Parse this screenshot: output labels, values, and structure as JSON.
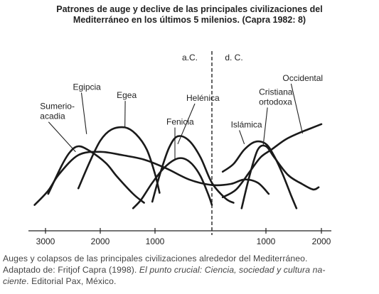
{
  "chart_data": {
    "type": "line",
    "title_line1": "Patrones de auge y declive de las principales civilizaciones del",
    "title_line2": "Mediterráneo en los últimos 5 milenios. (Capra 1982: 8)",
    "era_labels": {
      "bc": "a.C.",
      "ad": "d. C."
    },
    "x_ticks": [
      {
        "value": -3000,
        "label": "3000"
      },
      {
        "value": -2000,
        "label": "2000"
      },
      {
        "value": -1000,
        "label": "1000"
      },
      {
        "value": 1000,
        "label": "1000"
      },
      {
        "value": 2000,
        "label": "2000"
      }
    ],
    "xlim": [
      -3300,
      2200
    ],
    "ylim": [
      0,
      10
    ],
    "divider_at": 0,
    "series": [
      {
        "name": "Sumerio-acadia",
        "label_lines": [
          "Sumerio-",
          "acadia"
        ],
        "label_x": -3100,
        "label_y": 9.25,
        "leader_to": [
          -2450,
          5.4
        ],
        "points": [
          [
            -2950,
            1.6
          ],
          [
            -2700,
            4.2
          ],
          [
            -2550,
            5.4
          ],
          [
            -2400,
            5.9
          ],
          [
            -2200,
            5.5
          ],
          [
            -1900,
            4.4
          ],
          [
            -1700,
            3.2
          ],
          [
            -1400,
            1.6
          ],
          [
            -1200,
            0.8
          ]
        ]
      },
      {
        "name": "Egipcia",
        "label_lines": [
          "Egipcia"
        ],
        "label_x": -2500,
        "label_y": 11.0,
        "leader_to": [
          -2250,
          7.0
        ],
        "points": [
          [
            -3200,
            0.6
          ],
          [
            -2950,
            1.9
          ],
          [
            -2750,
            3.4
          ],
          [
            -2400,
            5.1
          ],
          [
            -2000,
            5.4
          ],
          [
            -1600,
            5.1
          ],
          [
            -1200,
            4.7
          ],
          [
            -800,
            3.9
          ],
          [
            -400,
            2.9
          ],
          [
            0,
            2.4
          ],
          [
            350,
            2.5
          ],
          [
            600,
            2.9
          ],
          [
            850,
            2.6
          ],
          [
            1050,
            1.6
          ]
        ]
      },
      {
        "name": "Egea",
        "label_lines": [
          "Egea"
        ],
        "label_x": -1700,
        "label_y": 10.25,
        "leader_to": [
          -1550,
          7.55
        ],
        "points": [
          [
            -2400,
            2.1
          ],
          [
            -2200,
            4.4
          ],
          [
            -2000,
            6.4
          ],
          [
            -1800,
            7.4
          ],
          [
            -1550,
            7.6
          ],
          [
            -1350,
            7.0
          ],
          [
            -1150,
            5.6
          ],
          [
            -1000,
            3.4
          ],
          [
            -920,
            1.7
          ]
        ]
      },
      {
        "name": "Fenicia",
        "label_lines": [
          "Fenicia"
        ],
        "label_x": -800,
        "label_y": 7.85,
        "leader_to": [
          -650,
          4.75
        ],
        "points": [
          [
            -1400,
            0.3
          ],
          [
            -1250,
            1.1
          ],
          [
            -1050,
            2.6
          ],
          [
            -850,
            3.9
          ],
          [
            -650,
            4.7
          ],
          [
            -500,
            4.8
          ],
          [
            -350,
            4.3
          ],
          [
            -200,
            3.2
          ],
          [
            -60,
            1.5
          ],
          [
            0,
            0.6
          ]
        ]
      },
      {
        "name": "Helénica",
        "label_lines": [
          "Helénica"
        ],
        "label_x": -450,
        "label_y": 10.0,
        "leader_to": [
          -600,
          6.1
        ],
        "points": [
          [
            -1050,
            0.9
          ],
          [
            -900,
            3.6
          ],
          [
            -750,
            5.8
          ],
          [
            -600,
            6.8
          ],
          [
            -400,
            6.4
          ],
          [
            -200,
            4.9
          ],
          [
            0,
            2.6
          ],
          [
            250,
            1.2
          ],
          [
            400,
            0.8
          ]
        ]
      },
      {
        "name": "Islámica",
        "label_lines": [
          "Islámica"
        ],
        "label_x": 350,
        "label_y": 7.6,
        "leader_to": [
          600,
          6.1
        ],
        "points": [
          [
            550,
            0.3
          ],
          [
            700,
            3.3
          ],
          [
            850,
            5.6
          ],
          [
            1000,
            5.9
          ],
          [
            1150,
            4.9
          ],
          [
            1400,
            3.3
          ],
          [
            1650,
            2.5
          ],
          [
            1850,
            2.0
          ],
          [
            1950,
            2.2
          ]
        ]
      },
      {
        "name": "Cristiana ortodoxa",
        "label_lines": [
          "Cristiana",
          "ortodoxa"
        ],
        "label_x": 870,
        "label_y": 10.55,
        "leader_to": [
          950,
          6.0
        ],
        "points": [
          [
            200,
            3.6
          ],
          [
            400,
            4.3
          ],
          [
            600,
            5.6
          ],
          [
            800,
            6.3
          ],
          [
            1000,
            6.1
          ],
          [
            1150,
            5.0
          ],
          [
            1300,
            3.4
          ],
          [
            1450,
            1.5
          ],
          [
            1550,
            0.3
          ]
        ]
      },
      {
        "name": "Occidental",
        "label_lines": [
          "Occidental"
        ],
        "label_x": 1300,
        "label_y": 11.8,
        "leader_to": [
          1660,
          7.05
        ],
        "points": [
          [
            200,
            1.3
          ],
          [
            450,
            2.0
          ],
          [
            700,
            3.6
          ],
          [
            900,
            4.9
          ],
          [
            1100,
            5.6
          ],
          [
            1350,
            6.5
          ],
          [
            1600,
            7.1
          ],
          [
            1800,
            7.5
          ],
          [
            2000,
            7.9
          ]
        ]
      }
    ]
  },
  "caption": {
    "line1": "Auges y colapsos de las principales civilizaciones alrededor del Mediterráneo.",
    "line2_plain": "Adaptado de: Fritjof Capra (1998). ",
    "line2_italic": "El punto crucial: Ciencia, sociedad y cultura na-",
    "line3_italic": "ciente",
    "line3_plain": ". Editorial Pax, México."
  }
}
